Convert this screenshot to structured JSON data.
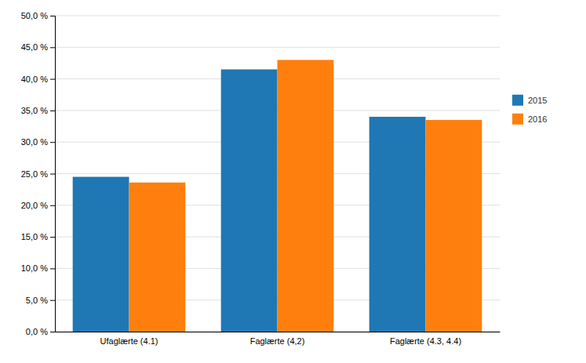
{
  "chart_data": {
    "type": "bar",
    "categories": [
      "Ufaglærte (4.1)",
      "Faglærte (4,2)",
      "Faglærte (4.3, 4.4)"
    ],
    "series": [
      {
        "name": "2015",
        "values": [
          0.245,
          0.415,
          0.34
        ]
      },
      {
        "name": "2016",
        "values": [
          0.236,
          0.43,
          0.335
        ]
      }
    ],
    "ylim": [
      0.0,
      0.5
    ],
    "yticks": [
      {
        "value": 0.0,
        "label": "0,0 %"
      },
      {
        "value": 0.05,
        "label": "5,0 %"
      },
      {
        "value": 0.1,
        "label": "10,0 %"
      },
      {
        "value": 0.15,
        "label": "15,0 %"
      },
      {
        "value": 0.2,
        "label": "20,0 %"
      },
      {
        "value": 0.25,
        "label": "25,0 %"
      },
      {
        "value": 0.3,
        "label": "30,0 %"
      },
      {
        "value": 0.35,
        "label": "35,0 %"
      },
      {
        "value": 0.4,
        "label": "40,0 %"
      },
      {
        "value": 0.45,
        "label": "45,0 %"
      },
      {
        "value": 0.5,
        "label": "50,0 %"
      }
    ],
    "grid": true,
    "legend": "right"
  }
}
